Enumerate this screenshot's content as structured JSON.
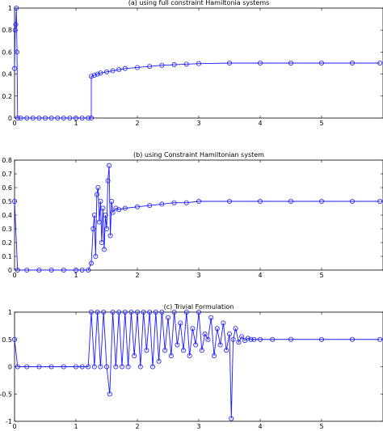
{
  "chart_data": [
    {
      "type": "line",
      "title": "(a) using full constraint Hamiltonia systems",
      "xlim": [
        0,
        6
      ],
      "ylim": [
        0,
        1
      ],
      "xticks": [
        0,
        1,
        2,
        3,
        4,
        5
      ],
      "yticks": [
        0,
        0.2,
        0.4,
        0.6,
        0.8,
        1
      ],
      "ytick_labels": [
        "0",
        "0.2",
        "0.4",
        "0.6",
        "0.8",
        "1"
      ],
      "grid": false,
      "series_color": "#1a1aff",
      "marker": "circle",
      "series": [
        {
          "x": [
            0,
            0.01,
            0.02,
            0.03,
            0.04,
            0.05,
            0.1,
            0.2,
            0.3,
            0.4,
            0.5,
            0.6,
            0.7,
            0.8,
            0.9,
            1.0,
            1.1,
            1.2,
            1.25,
            1.25,
            1.3,
            1.35,
            1.4,
            1.5,
            1.6,
            1.7,
            1.8,
            2.0,
            2.2,
            2.4,
            2.6,
            2.8,
            3.0,
            3.5,
            4.0,
            4.5,
            5.0,
            5.5,
            5.95
          ],
          "y": [
            0.45,
            0.8,
            0.85,
            1.0,
            0.6,
            0,
            0,
            0,
            0,
            0,
            0,
            0,
            0,
            0,
            0,
            0,
            0,
            0,
            0,
            0.38,
            0.39,
            0.4,
            0.41,
            0.42,
            0.43,
            0.44,
            0.45,
            0.46,
            0.47,
            0.48,
            0.485,
            0.49,
            0.495,
            0.5,
            0.5,
            0.5,
            0.5,
            0.5,
            0.5
          ]
        }
      ]
    },
    {
      "type": "line",
      "title": "(b) using Constraint Hamiltonian system",
      "xlim": [
        0,
        6
      ],
      "ylim": [
        0,
        0.8
      ],
      "xticks": [
        0,
        1,
        2,
        3,
        4,
        5
      ],
      "yticks": [
        0,
        0.1,
        0.2,
        0.3,
        0.4,
        0.5,
        0.6,
        0.7,
        0.8
      ],
      "ytick_labels": [
        "0",
        "0.1",
        "0.2",
        "0.3",
        "0.4",
        "0.5",
        "0.6",
        "0.7",
        "0.8"
      ],
      "grid": false,
      "series_color": "#1a1aff",
      "marker": "circle",
      "series": [
        {
          "x": [
            0,
            0.05,
            0.2,
            0.4,
            0.6,
            0.8,
            1.0,
            1.1,
            1.2,
            1.25,
            1.28,
            1.3,
            1.32,
            1.34,
            1.36,
            1.38,
            1.4,
            1.42,
            1.44,
            1.46,
            1.48,
            1.5,
            1.52,
            1.54,
            1.56,
            1.58,
            1.6,
            1.65,
            1.7,
            1.8,
            2.0,
            2.2,
            2.4,
            2.6,
            2.8,
            3.0,
            3.5,
            4.0,
            4.5,
            5.0,
            5.5,
            5.95
          ],
          "y": [
            0.5,
            0,
            0,
            0,
            0,
            0,
            0,
            0,
            0,
            0.05,
            0.3,
            0.4,
            0.1,
            0.55,
            0.6,
            0.35,
            0.5,
            0.2,
            0.45,
            0.15,
            0.4,
            0.3,
            0.65,
            0.76,
            0.25,
            0.5,
            0.42,
            0.45,
            0.44,
            0.45,
            0.46,
            0.47,
            0.48,
            0.49,
            0.49,
            0.5,
            0.5,
            0.5,
            0.5,
            0.5,
            0.5,
            0.5
          ]
        }
      ]
    },
    {
      "type": "line",
      "title": "(c) Trivial Formulation",
      "xlim": [
        0,
        6
      ],
      "ylim": [
        -1,
        1
      ],
      "xticks": [
        0,
        1,
        2,
        3,
        4,
        5
      ],
      "yticks": [
        -1,
        -0.5,
        0,
        0.5,
        1
      ],
      "ytick_labels": [
        "-1",
        "-0.5",
        "0",
        "0.5",
        "1"
      ],
      "grid": false,
      "series_color": "#1a1aff",
      "marker": "circle",
      "series": [
        {
          "x": [
            0,
            0.05,
            0.2,
            0.4,
            0.6,
            0.8,
            1.0,
            1.1,
            1.2,
            1.25,
            1.3,
            1.35,
            1.4,
            1.45,
            1.5,
            1.55,
            1.6,
            1.65,
            1.7,
            1.75,
            1.8,
            1.85,
            1.9,
            1.95,
            2.0,
            2.05,
            2.1,
            2.15,
            2.2,
            2.25,
            2.3,
            2.35,
            2.4,
            2.45,
            2.5,
            2.55,
            2.6,
            2.65,
            2.7,
            2.75,
            2.8,
            2.85,
            2.9,
            2.95,
            3.0,
            3.05,
            3.1,
            3.15,
            3.2,
            3.25,
            3.3,
            3.35,
            3.4,
            3.45,
            3.5,
            3.53,
            3.56,
            3.6,
            3.65,
            3.7,
            3.75,
            3.8,
            3.85,
            3.9,
            4.0,
            4.2,
            4.5,
            5.0,
            5.5,
            5.95
          ],
          "y": [
            0.5,
            0,
            0,
            0,
            0,
            0,
            0,
            0,
            0,
            1,
            0,
            1,
            0,
            1,
            0,
            -0.5,
            1,
            0,
            1,
            0,
            1,
            0,
            1,
            0.2,
            1,
            0,
            1,
            0.3,
            1,
            0,
            1,
            0.1,
            1,
            0.3,
            0.9,
            0.2,
            1,
            0.4,
            0.8,
            0.3,
            1,
            0.2,
            0.7,
            0.4,
            1,
            0.3,
            0.6,
            0.5,
            0.9,
            0.2,
            0.7,
            0.4,
            0.8,
            0.3,
            0.6,
            -0.95,
            0.5,
            0.7,
            0.45,
            0.55,
            0.48,
            0.52,
            0.5,
            0.5,
            0.5,
            0.5,
            0.5,
            0.5,
            0.5,
            0.5
          ]
        }
      ]
    }
  ]
}
